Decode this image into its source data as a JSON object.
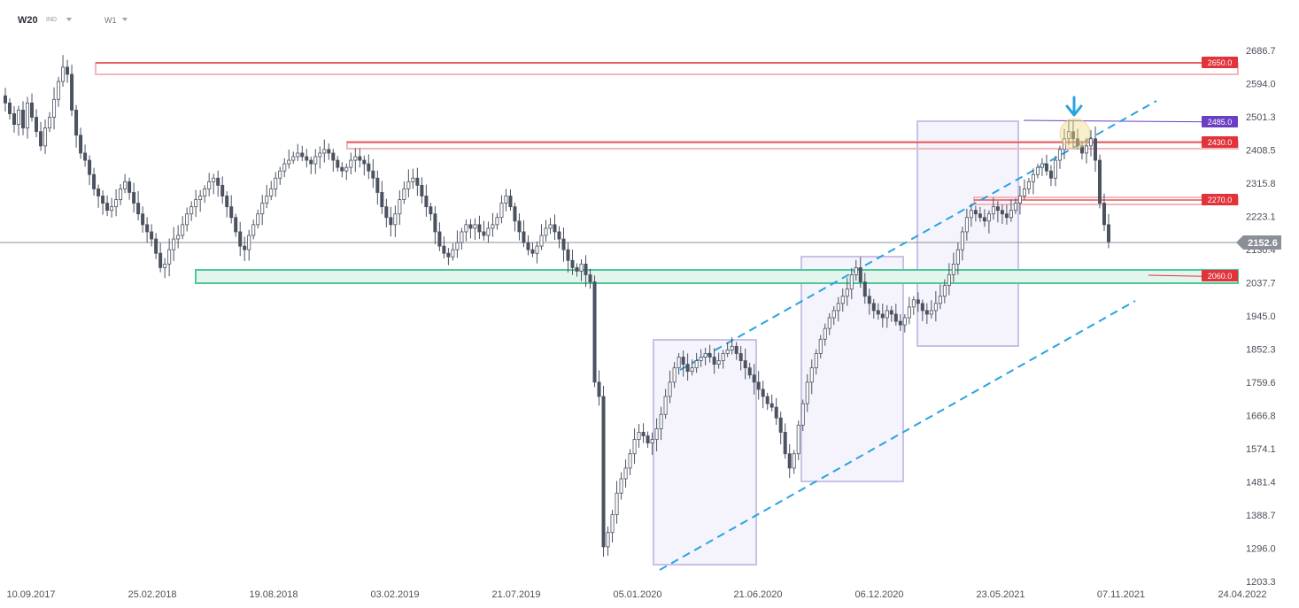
{
  "header": {
    "symbol": "W20",
    "market": "IND",
    "timeframe": "W1"
  },
  "chart_data": {
    "type": "candlestick",
    "ylim": [
      1203.3,
      2700
    ],
    "y_ticks": [
      "2686.7",
      "2594.0",
      "2501.3",
      "2408.5",
      "2315.8",
      "2223.1",
      "2130.4",
      "2037.7",
      "1945.0",
      "1852.3",
      "1759.6",
      "1666.8",
      "1574.1",
      "1481.4",
      "1388.7",
      "1296.0",
      "1203.3"
    ],
    "x_ticks": [
      "10.09.2017",
      "25.02.2018",
      "19.08.2018",
      "03.02.2019",
      "21.07.2019",
      "05.01.2020",
      "21.06.2020",
      "06.12.2020",
      "23.05.2021",
      "07.11.2021",
      "24.04.2022"
    ],
    "current_price": "2152.6",
    "levels": [
      {
        "label": "2650.0",
        "value": 2650,
        "color": "#e0333a"
      },
      {
        "label": "2485.0",
        "value": 2485,
        "color": "#6a3fc4"
      },
      {
        "label": "2430.0",
        "value": 2430,
        "color": "#e0333a"
      },
      {
        "label": "2270.0",
        "value": 2270,
        "color": "#e0333a"
      },
      {
        "label": "2060.0",
        "value": 2060,
        "color": "#e0333a"
      }
    ],
    "close_path": [
      2540,
      2510,
      2480,
      2520,
      2470,
      2540,
      2500,
      2460,
      2420,
      2470,
      2500,
      2550,
      2600,
      2640,
      2620,
      2520,
      2450,
      2400,
      2380,
      2340,
      2300,
      2280,
      2260,
      2240,
      2250,
      2270,
      2300,
      2320,
      2290,
      2260,
      2230,
      2200,
      2180,
      2160,
      2120,
      2080,
      2090,
      2130,
      2160,
      2170,
      2200,
      2230,
      2250,
      2270,
      2280,
      2300,
      2320,
      2330,
      2310,
      2280,
      2250,
      2220,
      2180,
      2140,
      2130,
      2170,
      2200,
      2230,
      2260,
      2280,
      2300,
      2330,
      2350,
      2370,
      2380,
      2390,
      2400,
      2390,
      2380,
      2370,
      2390,
      2400,
      2410,
      2400,
      2380,
      2360,
      2350,
      2360,
      2380,
      2390,
      2380,
      2370,
      2350,
      2330,
      2290,
      2250,
      2220,
      2200,
      2230,
      2270,
      2300,
      2320,
      2330,
      2310,
      2280,
      2250,
      2230,
      2180,
      2140,
      2120,
      2110,
      2130,
      2150,
      2180,
      2200,
      2190,
      2200,
      2180,
      2170,
      2190,
      2200,
      2220,
      2260,
      2280,
      2250,
      2210,
      2180,
      2150,
      2130,
      2120,
      2140,
      2170,
      2190,
      2200,
      2180,
      2160,
      2130,
      2100,
      2080,
      2070,
      2090,
      2060,
      2040,
      1760,
      1720,
      1300,
      1340,
      1390,
      1450,
      1490,
      1520,
      1560,
      1600,
      1620,
      1610,
      1590,
      1600,
      1630,
      1670,
      1720,
      1760,
      1800,
      1830,
      1810,
      1790,
      1800,
      1820,
      1830,
      1840,
      1830,
      1810,
      1820,
      1840,
      1850,
      1860,
      1840,
      1820,
      1800,
      1780,
      1760,
      1740,
      1720,
      1700,
      1690,
      1660,
      1620,
      1560,
      1520,
      1560,
      1640,
      1700,
      1760,
      1800,
      1840,
      1880,
      1910,
      1940,
      1960,
      1980,
      2000,
      2020,
      2060,
      2080,
      2040,
      2000,
      1980,
      1960,
      1950,
      1940,
      1960,
      1950,
      1930,
      1920,
      1940,
      1970,
      1990,
      1980,
      1960,
      1950,
      1960,
      1980,
      2000,
      2030,
      2060,
      2090,
      2130,
      2180,
      2220,
      2240,
      2230,
      2220,
      2210,
      2230,
      2250,
      2240,
      2230,
      2220,
      2240,
      2260,
      2280,
      2300,
      2320,
      2340,
      2360,
      2370,
      2350,
      2330,
      2380,
      2410,
      2440,
      2460,
      2440,
      2420,
      2400,
      2420,
      2440,
      2380,
      2260,
      2200,
      2152.6
    ]
  }
}
